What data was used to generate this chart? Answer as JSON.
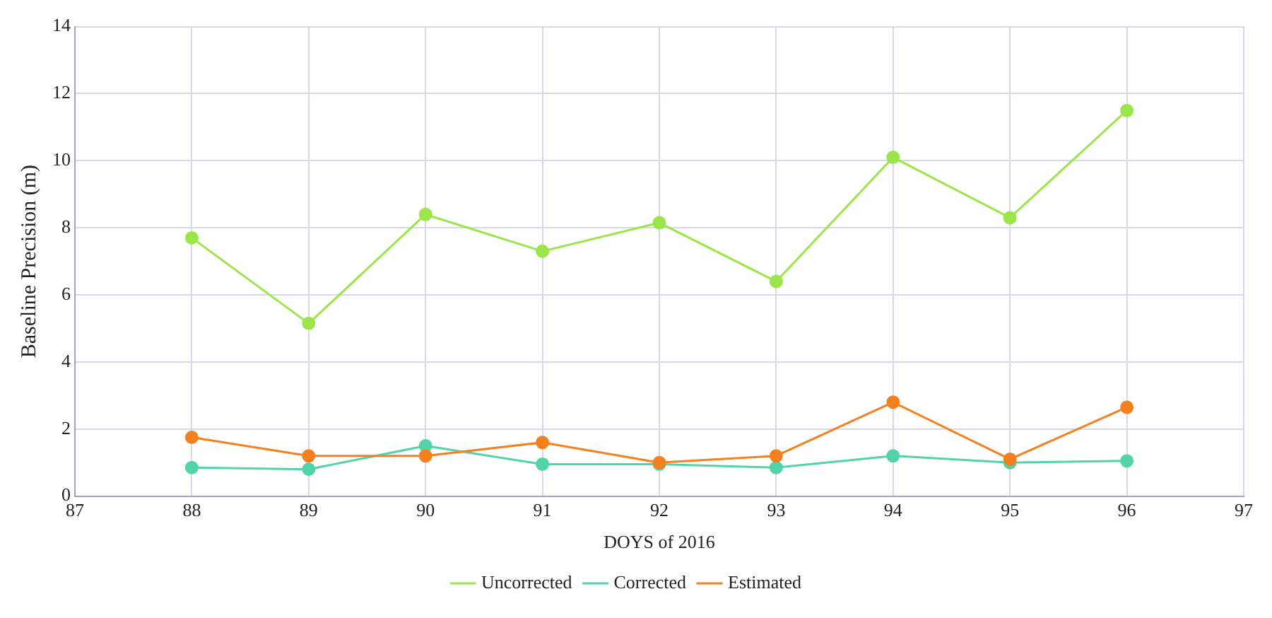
{
  "chart_data": {
    "type": "line",
    "xlabel": "DOYS of 2016",
    "ylabel": "Baseline Precision (m)",
    "x": [
      88,
      89,
      90,
      91,
      92,
      93,
      94,
      95,
      96
    ],
    "series": [
      {
        "name": "Uncorrected",
        "color": "#9ae64a",
        "values": [
          7.7,
          5.15,
          8.4,
          7.3,
          8.15,
          6.4,
          10.1,
          8.3,
          11.5
        ]
      },
      {
        "name": "Corrected",
        "color": "#52d3a8",
        "values": [
          0.85,
          0.8,
          1.5,
          0.95,
          0.95,
          0.85,
          1.2,
          1.0,
          1.05
        ]
      },
      {
        "name": "Estimated",
        "color": "#f5801f",
        "values": [
          1.75,
          1.2,
          1.2,
          1.6,
          1.0,
          1.2,
          2.8,
          1.1,
          2.65
        ]
      }
    ],
    "xlim": [
      87,
      97
    ],
    "xticks": [
      87,
      88,
      89,
      90,
      91,
      92,
      93,
      94,
      95,
      96,
      97
    ],
    "ylim": [
      0,
      14
    ],
    "yticks": [
      0,
      2,
      4,
      6,
      8,
      10,
      12,
      14
    ],
    "grid": true,
    "legend": "bottom",
    "marker": "circle",
    "line_style": "solid"
  }
}
